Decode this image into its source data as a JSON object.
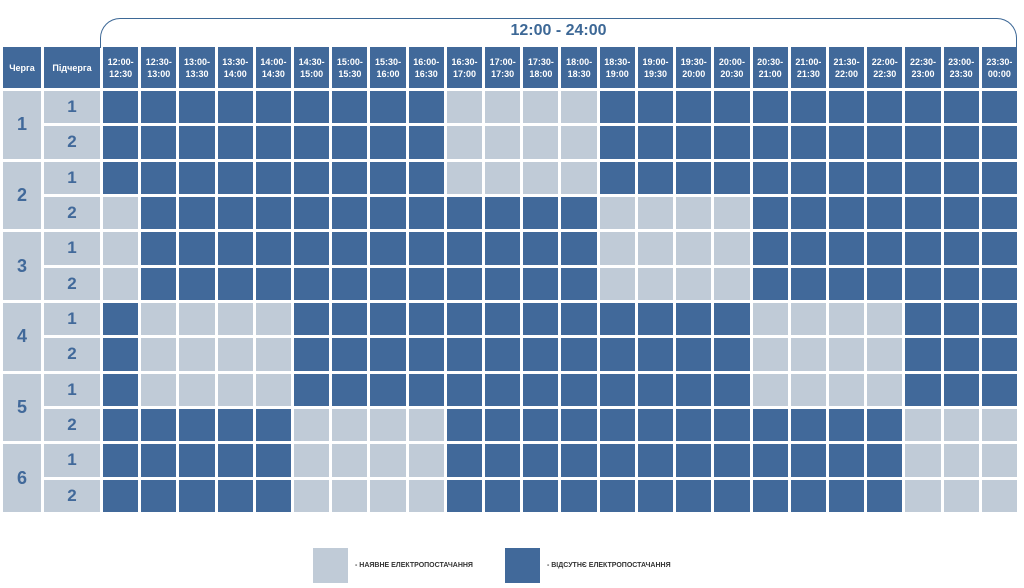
{
  "range_label": "12:00 - 24:00",
  "headers": {
    "group": "Черга",
    "subgroup": "Підчерга",
    "slots": [
      "12:00-\n12:30",
      "12:30-\n13:00",
      "13:00-\n13:30",
      "13:30-\n14:00",
      "14:00-\n14:30",
      "14:30-\n15:00",
      "15:00-\n15:30",
      "15:30-\n16:00",
      "16:00-\n16:30",
      "16:30-\n17:00",
      "17:00-\n17:30",
      "17:30-\n18:00",
      "18:00-\n18:30",
      "18:30-\n19:00",
      "19:00-\n19:30",
      "19:30-\n20:00",
      "20:00-\n20:30",
      "20:30-\n21:00",
      "21:00-\n21:30",
      "21:30-\n22:00",
      "22:00-\n22:30",
      "22:30-\n23:00",
      "23:00-\n23:30",
      "23:30-\n00:00"
    ]
  },
  "groups": [
    {
      "label": "1",
      "subgroups": [
        {
          "label": "1",
          "cells": "000000000111100000000000"
        },
        {
          "label": "2",
          "cells": "000000000111100000000000"
        }
      ]
    },
    {
      "label": "2",
      "subgroups": [
        {
          "label": "1",
          "cells": "000000000111100000000000"
        },
        {
          "label": "2",
          "cells": "100000000000011110000000"
        }
      ]
    },
    {
      "label": "3",
      "subgroups": [
        {
          "label": "1",
          "cells": "100000000000011110000000"
        },
        {
          "label": "2",
          "cells": "100000000000011110000000"
        }
      ]
    },
    {
      "label": "4",
      "subgroups": [
        {
          "label": "1",
          "cells": "011110000000000001111000"
        },
        {
          "label": "2",
          "cells": "011110000000000001111000"
        }
      ]
    },
    {
      "label": "5",
      "subgroups": [
        {
          "label": "1",
          "cells": "011110000000000001111000"
        },
        {
          "label": "2",
          "cells": "000001111000000000000111"
        }
      ]
    },
    {
      "label": "6",
      "subgroups": [
        {
          "label": "1",
          "cells": "000001111000000000000111"
        },
        {
          "label": "2",
          "cells": "000001111000000000000111"
        }
      ]
    }
  ],
  "legend": {
    "available": {
      "label": "- НАЯВНЕ ЕЛЕКТРОПОСТАЧАННЯ",
      "color": "#c0cbd7"
    },
    "absent": {
      "label": "- ВІДСУТНЄ ЕЛЕКТРОПОСТАЧАННЯ",
      "color": "#41699a"
    }
  }
}
